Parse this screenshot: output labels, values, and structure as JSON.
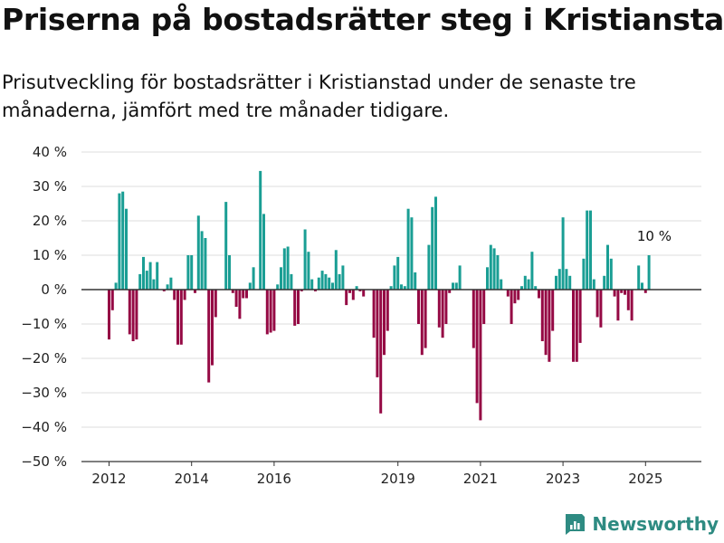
{
  "title": "Priserna på bostadsrätter steg i Kristianstad",
  "subtitle": "Prisutveckling för bostadsrätter i Kristianstad under de senaste tre månaderna, jämfört med tre månader tidigare.",
  "brand": {
    "name": "Newsworthy",
    "icon": "newsworthy-logo-icon"
  },
  "colors": {
    "positive": "#1a9e94",
    "negative": "#950944",
    "grid": "#dddddd",
    "zero": "#333333",
    "brand": "#2e8b82"
  },
  "chart_data": {
    "type": "bar",
    "title": "",
    "xlabel": "",
    "ylabel": "",
    "x_unit": "month",
    "ylim": [
      -50,
      40
    ],
    "yticks": [
      40,
      30,
      20,
      10,
      0,
      -10,
      -20,
      -30,
      -40,
      -50
    ],
    "ytick_labels": [
      "40 %",
      "30 %",
      "20 %",
      "10 %",
      "0 %",
      "−10 %",
      "−20 %",
      "−30 %",
      "−40 %",
      "−50 %"
    ],
    "xtick_labels": [
      "2012",
      "2014",
      "2016",
      "2019",
      "2021",
      "2023",
      "2025"
    ],
    "grid": true,
    "series": [
      {
        "segments": [
          {
            "start": "2012-01",
            "values": [
              -14.5,
              -6,
              2,
              28,
              28.5,
              23.5,
              -13,
              -15,
              -14.5,
              4.5,
              9.5,
              5.5,
              8,
              3,
              8,
              0,
              -0.5,
              1.5,
              3.5,
              -3,
              -16,
              -16,
              -3,
              10,
              10,
              -1,
              21.5,
              17,
              15,
              -27,
              -22,
              -8,
              0,
              0,
              25.5,
              10,
              -1,
              -5,
              -8.5,
              -2.5,
              -2.5,
              2,
              6.5,
              0,
              34.5,
              22,
              -13,
              -12.5,
              -12,
              1.5,
              6.5,
              12,
              12.5,
              4.5,
              -10.5,
              -10,
              -0.5,
              17.5,
              11,
              3,
              -0.5,
              3.5,
              5.5,
              4.5,
              3.5,
              2,
              11.5,
              4.5,
              7,
              -4.5,
              -1,
              -3,
              1,
              -0.5,
              -2
            ]
          },
          {
            "start": "2018-06",
            "values": [
              -14,
              -25.5,
              -36,
              -19,
              -12,
              1,
              7,
              9.5,
              1.5,
              1,
              23.5,
              21,
              5,
              -10,
              -19,
              -17,
              13,
              24,
              27,
              -11,
              -14,
              -10,
              -1,
              2,
              2,
              7
            ]
          },
          {
            "start": "2020-11",
            "values": [
              -17,
              -33,
              -38,
              -10,
              6.5,
              13,
              12,
              10,
              3,
              0,
              -2,
              -10,
              -4,
              -3,
              1,
              4,
              3,
              11,
              1,
              -2.5,
              -15,
              -19,
              -21,
              -12,
              4,
              6,
              21,
              6,
              4,
              -21,
              -21,
              -15.5,
              9,
              23,
              23,
              3,
              -8,
              -11,
              4,
              13,
              9,
              -2,
              -9,
              -1,
              -1.5,
              -6,
              -9,
              0,
              7,
              2,
              -1,
              10
            ]
          }
        ]
      }
    ],
    "annotation": {
      "text": "10 %",
      "value": 10,
      "at": "2025-03"
    }
  }
}
